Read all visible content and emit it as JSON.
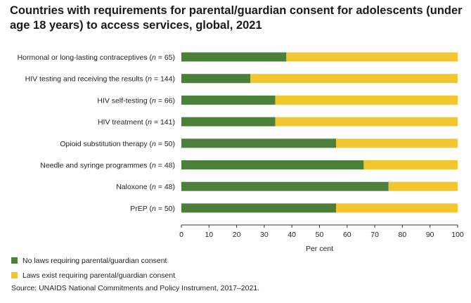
{
  "title": "Countries with requirements for parental/guardian consent for adolescents (under age 18 years) to access services, global, 2021",
  "source": "Source: UNAIDS National Commitments and Policy Instrument, 2017–2021.",
  "colors": {
    "no_laws": "#4b7f3a",
    "laws_exist": "#f2c62f",
    "axis": "#333333"
  },
  "chart_data": {
    "type": "bar",
    "orientation": "horizontal",
    "stacked": true,
    "categories": [
      {
        "name": "Hormonal or long-lasting contraceptives",
        "n": "65"
      },
      {
        "name": "HIV testing and receiving the results",
        "n": "144"
      },
      {
        "name": "HIV self-testing",
        "n": "66"
      },
      {
        "name": "HIV treatment",
        "n": "141"
      },
      {
        "name": "Opioid substitution therapy",
        "n": "50"
      },
      {
        "name": "Needle and syringe programmes",
        "n": "48"
      },
      {
        "name": "Naloxone",
        "n": "48"
      },
      {
        "name": "PrEP",
        "n": "50"
      }
    ],
    "series": [
      {
        "name": "No laws requiring parental/guardian consent",
        "values": [
          38,
          25,
          34,
          34,
          56,
          66,
          75,
          56
        ]
      },
      {
        "name": "Laws exist requiring parental/guardian consent",
        "values": [
          62,
          75,
          66,
          66,
          44,
          34,
          25,
          44
        ]
      }
    ],
    "xlabel": "Per cent",
    "ylabel": "",
    "xlim": [
      0,
      100
    ],
    "xticks": [
      "0",
      "10",
      "20",
      "30",
      "40",
      "50",
      "60",
      "70",
      "80",
      "90",
      "100"
    ],
    "grid": false,
    "legend_position": "bottom-left"
  }
}
